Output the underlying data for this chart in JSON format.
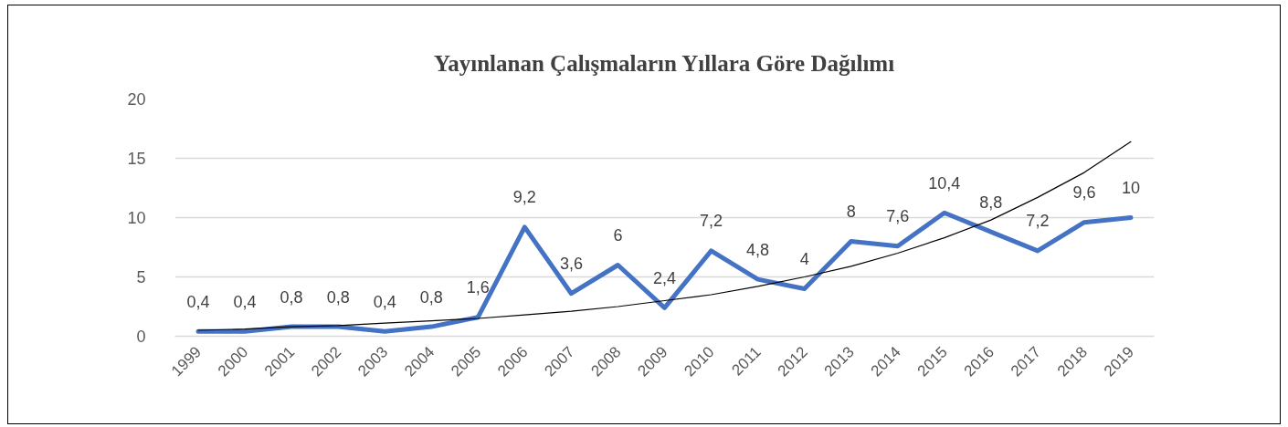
{
  "chart_data": {
    "type": "line",
    "title": "Yayınlanan Çalışmaların Yıllara Göre Dağılımı",
    "categories": [
      "1999",
      "2000",
      "2001",
      "2002",
      "2003",
      "2004",
      "2005",
      "2006",
      "2007",
      "2008",
      "2009",
      "2010",
      "2011",
      "2012",
      "2013",
      "2014",
      "2015",
      "2016",
      "2017",
      "2018",
      "2019"
    ],
    "series": [
      {
        "color": "#4472c4",
        "values": [
          0.4,
          0.4,
          0.8,
          0.8,
          0.4,
          0.8,
          1.6,
          9.2,
          3.6,
          6,
          2.4,
          7.2,
          4.8,
          4,
          8,
          7.6,
          10.4,
          8.8,
          7.2,
          9.6,
          10
        ],
        "value_labels": [
          "0,4",
          "0,4",
          "0,8",
          "0,8",
          "0,4",
          "0,8",
          "1,6",
          "9,2",
          "3,6",
          "6",
          "2,4",
          "7,2",
          "4,8",
          "4",
          "8",
          "7,6",
          "10,4",
          "8,8",
          "7,2",
          "9,6",
          "10"
        ]
      },
      {
        "type": "line",
        "color": "#000000",
        "values": [
          0.5,
          0.6,
          0.8,
          0.9,
          1.1,
          1.3,
          1.5,
          1.8,
          2.1,
          2.5,
          3.0,
          3.5,
          4.2,
          5.0,
          5.9,
          7.0,
          8.3,
          9.8,
          11.7,
          13.8,
          16.4
        ]
      }
    ],
    "ylim": [
      0,
      20
    ],
    "yticks": [
      0,
      5,
      10,
      15,
      20
    ],
    "grid": "y"
  }
}
